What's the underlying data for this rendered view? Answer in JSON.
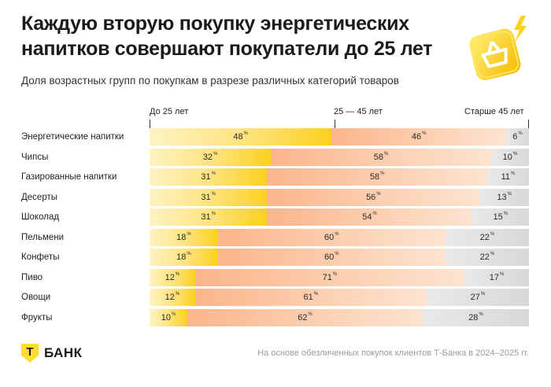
{
  "title": "Каждую вторую покупку энергетических напитков совершают покупатели до 25 лет",
  "subtitle": "Доля возрастных групп по покупкам в разрезе различных категорий товаров",
  "legend": {
    "young": "До 25 лет",
    "mid": "25 — 45 лет",
    "old": "Старше 45 лет"
  },
  "percent_sign": "%",
  "brand": {
    "mark": "Т",
    "name": "БАНК"
  },
  "footnote": "На основе обезличенных покупок клиентов Т-Банка в 2024–2025 гг.",
  "colors": {
    "young": "#fbd11e",
    "mid": "#fbb58a",
    "old": "#d8d8da",
    "brand": "#ffdd2d"
  },
  "chart_data": {
    "type": "bar",
    "stacked": true,
    "orientation": "horizontal",
    "title": "Каждую вторую покупку энергетических напитков совершают покупатели до 25 лет",
    "subtitle": "Доля возрастных групп по покупкам в разрезе различных категорий товаров",
    "categories": [
      "Энергетические напитки",
      "Чипсы",
      "Газированные напитки",
      "Десерты",
      "Шоколад",
      "Пельмени",
      "Конфеты",
      "Пиво",
      "Овощи",
      "Фрукты"
    ],
    "series": [
      {
        "name": "До 25 лет",
        "values": [
          48,
          32,
          31,
          31,
          31,
          18,
          18,
          12,
          12,
          10
        ]
      },
      {
        "name": "25 — 45 лет",
        "values": [
          46,
          58,
          58,
          56,
          54,
          60,
          60,
          71,
          61,
          62
        ]
      },
      {
        "name": "Старше 45 лет",
        "values": [
          6,
          10,
          11,
          13,
          15,
          22,
          22,
          17,
          27,
          28
        ]
      }
    ],
    "xlim": [
      0,
      100
    ],
    "legend_position": "top",
    "grid": false
  }
}
